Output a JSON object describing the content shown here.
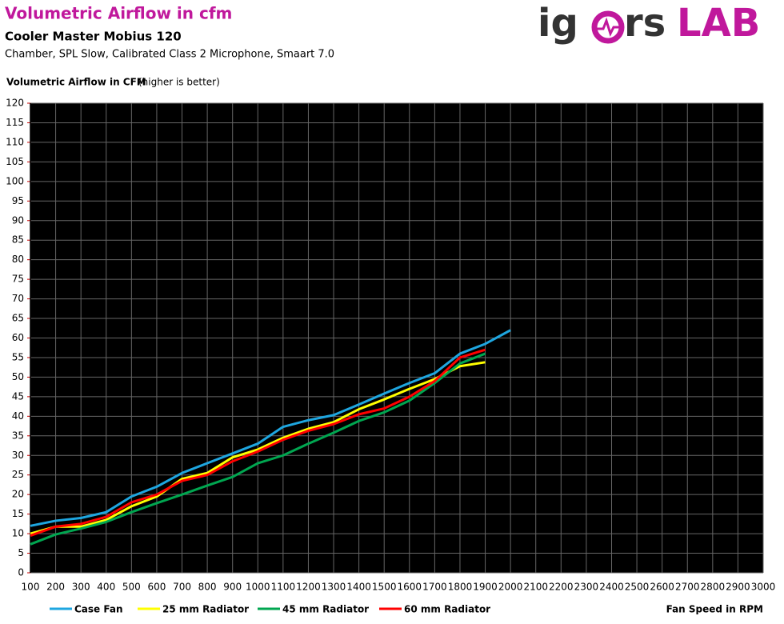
{
  "chart_data": {
    "type": "line",
    "title": "Volumetric Airflow in cfm",
    "subtitle": "Cooler Master Mobius 120",
    "description": "Chamber, SPL Slow, Calibrated Class 2 Microphone, Smaart 7.0",
    "y_label": "Volumetric Airflow in CFM",
    "y_label_note": "(higher is better)",
    "x_label": "Fan Speed in RPM",
    "logo": {
      "left": "ig",
      "middle": "rs",
      "right": "LAB"
    },
    "x": [
      100,
      200,
      300,
      400,
      500,
      600,
      700,
      800,
      900,
      1000,
      1100,
      1200,
      1300,
      1400,
      1500,
      1600,
      1700,
      1800,
      1900,
      2000
    ],
    "series": [
      {
        "name": "Case Fan",
        "color": "#1ea6e0",
        "values": [
          12,
          13.3,
          14,
          15.5,
          19.5,
          22,
          25.5,
          28,
          30.5,
          33,
          37.3,
          39,
          40.3,
          43,
          45.8,
          48.5,
          51,
          56,
          58.5,
          62
        ]
      },
      {
        "name": "25 mm Radiator",
        "color": "#ffff00",
        "values": [
          10,
          11.8,
          11.8,
          13.5,
          17,
          19.5,
          24,
          25.5,
          29.5,
          31.5,
          34.5,
          36.8,
          38.5,
          41.8,
          44.3,
          47,
          49.5,
          52.8,
          53.8,
          null
        ]
      },
      {
        "name": "45 mm Radiator",
        "color": "#00a650",
        "values": [
          7.3,
          9.8,
          11.3,
          13,
          15.5,
          17.8,
          20,
          22.3,
          24.5,
          28,
          30,
          33,
          35.8,
          38.8,
          41,
          44,
          48.5,
          53.5,
          56,
          null
        ]
      },
      {
        "name": "60 mm Radiator",
        "color": "#ff0000",
        "values": [
          9.5,
          11.8,
          12.5,
          14.3,
          18,
          20,
          23.5,
          25,
          28.5,
          31,
          34,
          36.3,
          38,
          40.5,
          42,
          45,
          49,
          55,
          57,
          null
        ]
      }
    ],
    "xlim": [
      100,
      3000
    ],
    "xticks": [
      100,
      200,
      300,
      400,
      500,
      600,
      700,
      800,
      900,
      1000,
      1100,
      1200,
      1300,
      1400,
      1500,
      1600,
      1700,
      1800,
      1900,
      2000,
      2100,
      2200,
      2300,
      2400,
      2500,
      2600,
      2700,
      2800,
      2900,
      3000
    ],
    "ylim": [
      0,
      120
    ],
    "yticks": [
      0,
      5,
      10,
      15,
      20,
      25,
      30,
      35,
      40,
      45,
      50,
      55,
      60,
      65,
      70,
      75,
      80,
      85,
      90,
      95,
      100,
      105,
      110,
      115,
      120
    ],
    "grid": true
  }
}
